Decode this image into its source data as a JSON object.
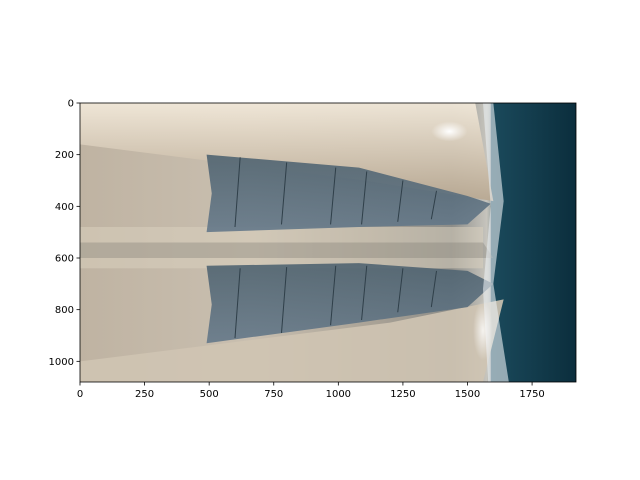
{
  "chart_data": {
    "type": "heatmap",
    "image_width": 1920,
    "image_height": 1080,
    "xlim": [
      0,
      1920
    ],
    "ylim": [
      1080,
      0
    ],
    "xticks": [
      0,
      250,
      500,
      750,
      1000,
      1250,
      1500,
      1750
    ],
    "yticks": [
      0,
      200,
      400,
      600,
      800,
      1000
    ],
    "xtick_labels": [
      "0",
      "250",
      "500",
      "750",
      "1000",
      "1250",
      "1500",
      "1750"
    ],
    "ytick_labels": [
      "0",
      "200",
      "400",
      "600",
      "800",
      "1000"
    ],
    "title": "",
    "xlabel": "",
    "ylabel": "",
    "grid": false,
    "colors": {
      "bright_metal": "#e2d7c6",
      "mid_metal": "#b7ab9a",
      "dark_panel": "#5a6c78",
      "deep_water": "#0e3646",
      "highlight": "#f4f7fa"
    }
  }
}
